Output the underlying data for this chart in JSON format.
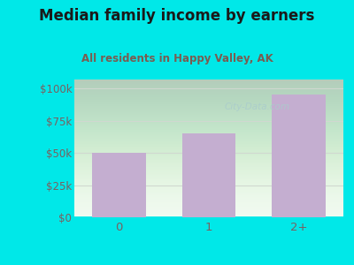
{
  "title": "Median family income by earners",
  "subtitle": "All residents in Happy Valley, AK",
  "categories": [
    "0",
    "1",
    "2+"
  ],
  "values": [
    50000,
    65000,
    95000
  ],
  "bar_color": "#c4aed0",
  "title_color": "#1a1a1a",
  "subtitle_color": "#7a5c50",
  "outer_bg": "#00e8e8",
  "yticks": [
    0,
    25000,
    50000,
    75000,
    100000
  ],
  "ytick_labels": [
    "$0",
    "$25k",
    "$50k",
    "$75k",
    "$100k"
  ],
  "ylim": [
    0,
    107000
  ],
  "tick_color": "#7a6060",
  "watermark": "City-Data.com",
  "watermark_color": "#aacccc",
  "grid_color": "#d0d8d0"
}
